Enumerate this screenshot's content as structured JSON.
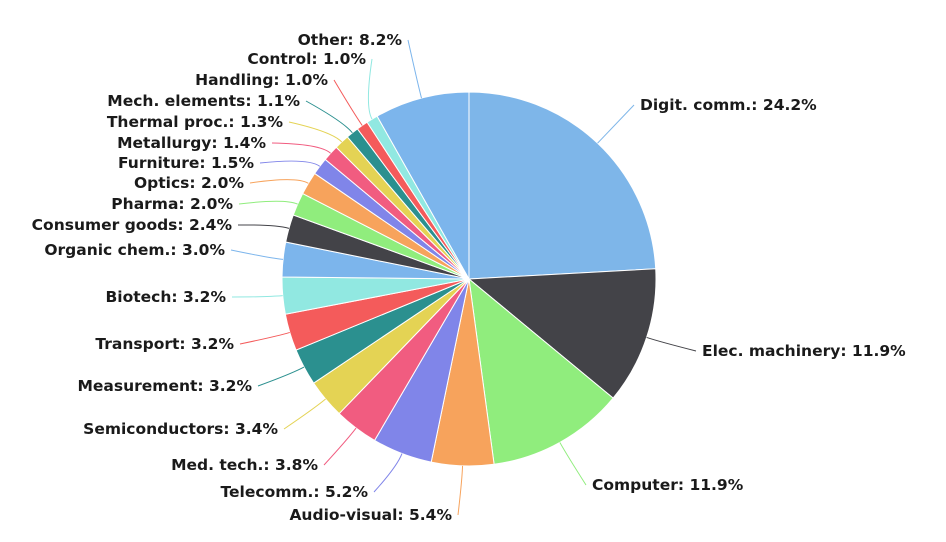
{
  "chart_data": {
    "type": "pie",
    "title": "",
    "legend": "none",
    "slices": [
      {
        "label": "Digit. comm.",
        "value": 24.2,
        "display": "Digit. comm.: 24.2%",
        "color": "#7eb6e9"
      },
      {
        "label": "Elec. machinery",
        "value": 11.9,
        "display": "Elec. machinery: 11.9%",
        "color": "#434348"
      },
      {
        "label": "Computer",
        "value": 11.9,
        "display": "Computer: 11.9%",
        "color": "#90ed7d"
      },
      {
        "label": "Audio-visual",
        "value": 5.4,
        "display": "Audio-visual: 5.4%",
        "color": "#f7a35c"
      },
      {
        "label": "Telecomm.",
        "value": 5.2,
        "display": "Telecomm.: 5.2%",
        "color": "#8085e9"
      },
      {
        "label": "Med. tech.",
        "value": 3.8,
        "display": "Med. tech.: 3.8%",
        "color": "#f15c80"
      },
      {
        "label": "Semiconductors",
        "value": 3.4,
        "display": "Semiconductors: 3.4%",
        "color": "#e4d354"
      },
      {
        "label": "Measurement",
        "value": 3.2,
        "display": "Measurement: 3.2%",
        "color": "#2b908f"
      },
      {
        "label": "Transport",
        "value": 3.2,
        "display": "Transport: 3.2%",
        "color": "#f45b5b"
      },
      {
        "label": "Biotech",
        "value": 3.2,
        "display": "Biotech: 3.2%",
        "color": "#91e8e1"
      },
      {
        "label": "Organic chem.",
        "value": 3.0,
        "display": "Organic chem.: 3.0%",
        "color": "#7cb5ec"
      },
      {
        "label": "Consumer goods",
        "value": 2.4,
        "display": "Consumer goods: 2.4%",
        "color": "#434348"
      },
      {
        "label": "Pharma",
        "value": 2.0,
        "display": "Pharma: 2.0%",
        "color": "#90ed7d"
      },
      {
        "label": "Optics",
        "value": 2.0,
        "display": "Optics: 2.0%",
        "color": "#f7a35c"
      },
      {
        "label": "Furniture",
        "value": 1.5,
        "display": "Furniture: 1.5%",
        "color": "#8085e9"
      },
      {
        "label": "Metallurgy",
        "value": 1.4,
        "display": "Metallurgy: 1.4%",
        "color": "#f15c80"
      },
      {
        "label": "Thermal proc.",
        "value": 1.3,
        "display": "Thermal proc.: 1.3%",
        "color": "#e4d354"
      },
      {
        "label": "Mech. elements",
        "value": 1.1,
        "display": "Mech. elements: 1.1%",
        "color": "#2b908f"
      },
      {
        "label": "Handling",
        "value": 1.0,
        "display": "Handling: 1.0%",
        "color": "#f45b5b"
      },
      {
        "label": "Control",
        "value": 1.0,
        "display": "Control: 1.0%",
        "color": "#91e8e1"
      },
      {
        "label": "Other",
        "value": 8.2,
        "display": "Other: 8.2%",
        "color": "#7cb5ec"
      }
    ]
  }
}
